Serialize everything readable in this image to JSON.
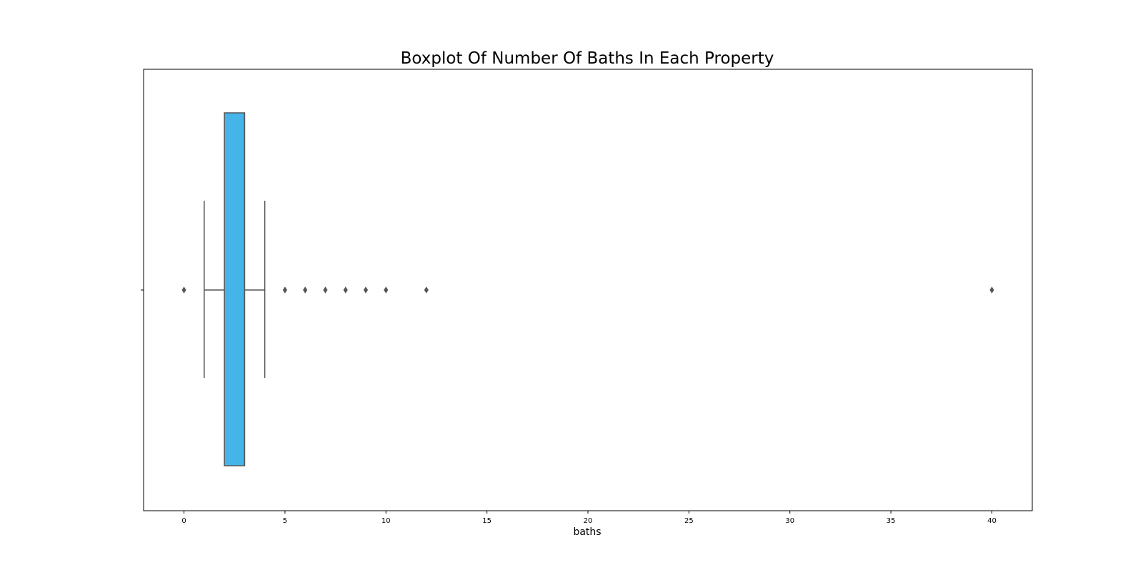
{
  "chart_data": {
    "type": "boxplot",
    "title": "Boxplot Of Number Of Baths In Each Property",
    "xlabel": "baths",
    "ylabel": "",
    "xlim": [
      -2,
      42
    ],
    "xticks": [
      0,
      5,
      10,
      15,
      20,
      25,
      30,
      35,
      40
    ],
    "orientation": "horizontal",
    "grid": false,
    "box": {
      "whisker_low": 1,
      "q1": 2,
      "median": 3,
      "q3": 3,
      "whisker_high": 4,
      "outliers": [
        0,
        5,
        6,
        7,
        8,
        9,
        10,
        12,
        40
      ]
    },
    "box_color": "#45b4e8",
    "line_color": "#555555"
  }
}
